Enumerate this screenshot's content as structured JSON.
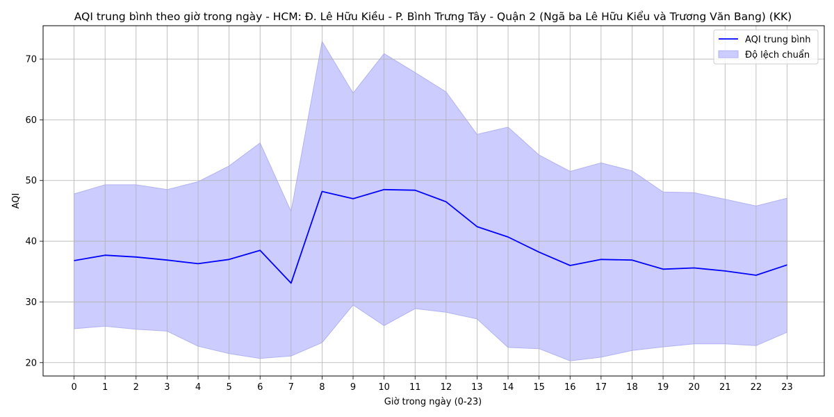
{
  "chart_data": {
    "type": "line",
    "title": "AQI trung bình theo giờ trong ngày - HCM: Đ. Lê Hữu Kiều - P. Bình Trưng Tây - Quận 2 (Ngã ba Lê Hữu Kiểu và Trương Văn Bang) (KK)",
    "xlabel": "Giờ trong ngày (0-23)",
    "ylabel": "AQI",
    "x": [
      0,
      1,
      2,
      3,
      4,
      5,
      6,
      7,
      8,
      9,
      10,
      11,
      12,
      13,
      14,
      15,
      16,
      17,
      18,
      19,
      20,
      21,
      22,
      23
    ],
    "series": [
      {
        "name": "AQI trung bình",
        "values": [
          36.8,
          37.7,
          37.4,
          36.9,
          36.3,
          37.0,
          38.5,
          33.1,
          48.2,
          47.0,
          48.5,
          48.4,
          46.5,
          42.4,
          40.7,
          38.2,
          36.0,
          37.0,
          36.9,
          35.4,
          35.6,
          35.1,
          34.4,
          36.1
        ]
      },
      {
        "name": "Độ lệch chuẩn",
        "upper": [
          47.8,
          49.3,
          49.3,
          48.5,
          49.8,
          52.4,
          56.2,
          44.9,
          72.9,
          64.4,
          70.9,
          67.8,
          64.6,
          57.6,
          58.8,
          54.2,
          51.5,
          52.9,
          51.6,
          48.1,
          48.0,
          46.9,
          45.8,
          47.1
        ],
        "lower": [
          25.6,
          26.0,
          25.5,
          25.2,
          22.7,
          21.5,
          20.7,
          21.1,
          23.3,
          29.5,
          26.1,
          28.9,
          28.3,
          27.2,
          22.5,
          22.3,
          20.3,
          20.9,
          22.0,
          22.6,
          23.1,
          23.1,
          22.8,
          25.0
        ]
      }
    ],
    "xticks": [
      "0",
      "1",
      "2",
      "3",
      "4",
      "5",
      "6",
      "7",
      "8",
      "9",
      "10",
      "11",
      "12",
      "13",
      "14",
      "15",
      "16",
      "17",
      "18",
      "19",
      "20",
      "21",
      "22",
      "23"
    ],
    "yticks": [
      "20",
      "30",
      "40",
      "50",
      "60",
      "70"
    ],
    "xlim": [
      -1.0,
      24.2
    ],
    "ylim": [
      17.8,
      75.5
    ],
    "grid": true,
    "legend_position": "top-right",
    "colors": {
      "line": "#0000ff",
      "band_fill": "#ccccff",
      "band_edge": "#b2b2f5",
      "grid": "#b0b0b0"
    }
  }
}
